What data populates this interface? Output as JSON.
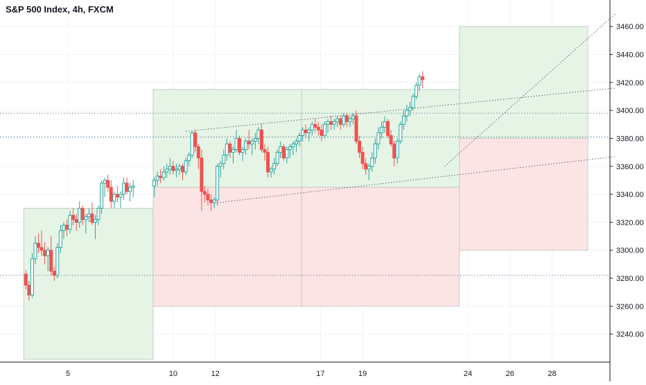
{
  "chart_data": {
    "type": "candlestick",
    "title": "S&P 500 Index, 4h, FXCM",
    "xlabel": "",
    "ylabel": "",
    "ylim": [
      3222,
      3470
    ],
    "y_ticks": [
      "3240.00",
      "3260.00",
      "3280.00",
      "3300.00",
      "3320.00",
      "3340.00",
      "3360.00",
      "3380.00",
      "3400.00",
      "3420.00",
      "3440.00",
      "3460.00"
    ],
    "x_ticks": [
      {
        "label": "5",
        "day": 5
      },
      {
        "label": "10",
        "day": 10
      },
      {
        "label": "12",
        "day": 12
      },
      {
        "label": "17",
        "day": 17
      },
      {
        "label": "19",
        "day": 19
      },
      {
        "label": "24",
        "day": 24
      },
      {
        "label": "26",
        "day": 26
      },
      {
        "label": "28",
        "day": 28
      }
    ],
    "grid": true,
    "colors": {
      "up": "#26a69a",
      "down": "#ef5350",
      "green_zone": "#e6f4e6",
      "red_zone": "#fde4e4",
      "zone_border": "#b9c4b9",
      "guide": "#555555"
    },
    "horizontal_levels": [
      3282,
      3381,
      3398
    ],
    "zones": [
      {
        "color": "green",
        "x1": 2.9,
        "x2": 9.05,
        "y_top": 3330,
        "y_bottom": 3222
      },
      {
        "color": "green",
        "x1": 9.05,
        "x2": 16.1,
        "y_top": 3415,
        "y_bottom": 3345
      },
      {
        "color": "red",
        "x1": 9.05,
        "x2": 16.1,
        "y_top": 3345,
        "y_bottom": 3260
      },
      {
        "color": "green",
        "x1": 16.1,
        "x2": 23.6,
        "y_top": 3415,
        "y_bottom": 3345
      },
      {
        "color": "red",
        "x1": 16.1,
        "x2": 23.6,
        "y_top": 3345,
        "y_bottom": 3260
      },
      {
        "color": "green",
        "x1": 23.6,
        "x2": 29.7,
        "y_top": 3460,
        "y_bottom": 3380
      },
      {
        "color": "red",
        "x1": 23.6,
        "x2": 29.7,
        "y_top": 3380,
        "y_bottom": 3300
      }
    ],
    "trendlines": [
      {
        "x1": 10.6,
        "y1": 3385,
        "x2": 31.0,
        "y2": 3416
      },
      {
        "x1": 12.1,
        "y1": 3334,
        "x2": 31.0,
        "y2": 3367
      },
      {
        "x1": 22.9,
        "y1": 3360,
        "x2": 31.0,
        "y2": 3469
      }
    ],
    "candles": [
      [
        3.0,
        3283,
        3286,
        3272,
        3275
      ],
      [
        3.15,
        3275,
        3278,
        3264,
        3268
      ],
      [
        3.3,
        3268,
        3298,
        3266,
        3294
      ],
      [
        3.45,
        3294,
        3310,
        3290,
        3305
      ],
      [
        3.6,
        3305,
        3312,
        3298,
        3302
      ],
      [
        3.75,
        3302,
        3314,
        3296,
        3300
      ],
      [
        3.9,
        3300,
        3306,
        3290,
        3296
      ],
      [
        4.05,
        3296,
        3302,
        3285,
        3300
      ],
      [
        4.2,
        3300,
        3310,
        3282,
        3285
      ],
      [
        4.35,
        3285,
        3288,
        3278,
        3282
      ],
      [
        4.5,
        3282,
        3305,
        3280,
        3302
      ],
      [
        4.65,
        3302,
        3318,
        3298,
        3314
      ],
      [
        4.8,
        3314,
        3320,
        3308,
        3318
      ],
      [
        4.95,
        3318,
        3322,
        3310,
        3315
      ],
      [
        5.1,
        3315,
        3328,
        3312,
        3325
      ],
      [
        5.25,
        3325,
        3330,
        3318,
        3322
      ],
      [
        5.4,
        3322,
        3326,
        3314,
        3320
      ],
      [
        5.55,
        3320,
        3335,
        3316,
        3330
      ],
      [
        5.7,
        3330,
        3332,
        3318,
        3322
      ],
      [
        5.85,
        3322,
        3326,
        3312,
        3324
      ],
      [
        6.0,
        3324,
        3330,
        3320,
        3326
      ],
      [
        6.15,
        3326,
        3334,
        3318,
        3320
      ],
      [
        6.3,
        3320,
        3325,
        3308,
        3322
      ],
      [
        6.45,
        3322,
        3332,
        3318,
        3330
      ],
      [
        6.6,
        3330,
        3350,
        3326,
        3348
      ],
      [
        6.75,
        3348,
        3352,
        3338,
        3350
      ],
      [
        6.9,
        3350,
        3354,
        3342,
        3345
      ],
      [
        7.05,
        3345,
        3350,
        3330,
        3335
      ],
      [
        7.2,
        3335,
        3342,
        3330,
        3340
      ],
      [
        7.35,
        3340,
        3346,
        3334,
        3338
      ],
      [
        7.5,
        3338,
        3342,
        3330,
        3340
      ],
      [
        7.65,
        3340,
        3352,
        3336,
        3348
      ],
      [
        7.8,
        3348,
        3352,
        3340,
        3342
      ],
      [
        7.95,
        3342,
        3348,
        3335,
        3345
      ],
      [
        8.1,
        3345,
        3350,
        3338,
        3346
      ],
      [
        9.1,
        3346,
        3352,
        3338,
        3350
      ],
      [
        9.25,
        3350,
        3356,
        3346,
        3353
      ],
      [
        9.4,
        3353,
        3358,
        3348,
        3352
      ],
      [
        9.55,
        3352,
        3360,
        3350,
        3356
      ],
      [
        9.7,
        3356,
        3362,
        3352,
        3358
      ],
      [
        9.85,
        3358,
        3366,
        3354,
        3360
      ],
      [
        10.0,
        3360,
        3364,
        3354,
        3357
      ],
      [
        10.15,
        3357,
        3362,
        3352,
        3358
      ],
      [
        10.3,
        3358,
        3362,
        3354,
        3360
      ],
      [
        10.45,
        3360,
        3362,
        3350,
        3356
      ],
      [
        10.6,
        3356,
        3366,
        3354,
        3364
      ],
      [
        10.75,
        3364,
        3370,
        3360,
        3368
      ],
      [
        10.9,
        3368,
        3385,
        3366,
        3384
      ],
      [
        11.05,
        3384,
        3386,
        3370,
        3374
      ],
      [
        11.2,
        3374,
        3376,
        3358,
        3366
      ],
      [
        11.35,
        3366,
        3372,
        3328,
        3342
      ],
      [
        11.5,
        3342,
        3346,
        3334,
        3340
      ],
      [
        11.65,
        3340,
        3344,
        3332,
        3336
      ],
      [
        11.8,
        3336,
        3340,
        3328,
        3334
      ],
      [
        11.95,
        3334,
        3338,
        3330,
        3336
      ],
      [
        12.1,
        3336,
        3362,
        3332,
        3360
      ],
      [
        12.25,
        3360,
        3364,
        3352,
        3362
      ],
      [
        12.4,
        3362,
        3372,
        3358,
        3368
      ],
      [
        12.55,
        3368,
        3380,
        3364,
        3376
      ],
      [
        12.7,
        3376,
        3378,
        3366,
        3370
      ],
      [
        12.85,
        3370,
        3374,
        3362,
        3372
      ],
      [
        13.0,
        3372,
        3386,
        3370,
        3380
      ],
      [
        13.15,
        3380,
        3382,
        3368,
        3370
      ],
      [
        13.3,
        3370,
        3374,
        3364,
        3372
      ],
      [
        13.45,
        3372,
        3380,
        3368,
        3378
      ],
      [
        13.6,
        3378,
        3386,
        3372,
        3376
      ],
      [
        13.75,
        3376,
        3380,
        3368,
        3378
      ],
      [
        13.9,
        3378,
        3384,
        3372,
        3380
      ],
      [
        14.05,
        3380,
        3388,
        3376,
        3386
      ],
      [
        14.2,
        3386,
        3390,
        3370,
        3372
      ],
      [
        14.35,
        3372,
        3376,
        3364,
        3370
      ],
      [
        14.5,
        3370,
        3374,
        3352,
        3356
      ],
      [
        14.65,
        3356,
        3360,
        3352,
        3358
      ],
      [
        14.8,
        3358,
        3366,
        3354,
        3362
      ],
      [
        14.95,
        3362,
        3372,
        3360,
        3370
      ],
      [
        15.1,
        3370,
        3378,
        3366,
        3374
      ],
      [
        15.25,
        3374,
        3376,
        3364,
        3366
      ],
      [
        15.4,
        3366,
        3374,
        3362,
        3372
      ],
      [
        15.55,
        3372,
        3376,
        3366,
        3374
      ],
      [
        15.7,
        3374,
        3378,
        3368,
        3376
      ],
      [
        15.85,
        3376,
        3380,
        3370,
        3378
      ],
      [
        16.0,
        3378,
        3384,
        3374,
        3382
      ],
      [
        16.15,
        3382,
        3388,
        3378,
        3386
      ],
      [
        16.3,
        3386,
        3390,
        3380,
        3384
      ],
      [
        16.45,
        3384,
        3388,
        3378,
        3386
      ],
      [
        16.6,
        3386,
        3392,
        3382,
        3390
      ],
      [
        16.75,
        3390,
        3394,
        3384,
        3388
      ],
      [
        16.9,
        3388,
        3392,
        3382,
        3386
      ],
      [
        17.05,
        3386,
        3390,
        3378,
        3382
      ],
      [
        17.2,
        3382,
        3392,
        3380,
        3390
      ],
      [
        17.35,
        3390,
        3394,
        3384,
        3392
      ],
      [
        17.5,
        3392,
        3396,
        3386,
        3390
      ],
      [
        17.65,
        3390,
        3394,
        3386,
        3392
      ],
      [
        17.8,
        3392,
        3396,
        3388,
        3394
      ],
      [
        17.95,
        3394,
        3396,
        3386,
        3390
      ],
      [
        18.1,
        3390,
        3398,
        3388,
        3396
      ],
      [
        18.25,
        3396,
        3398,
        3388,
        3392
      ],
      [
        18.4,
        3392,
        3396,
        3388,
        3394
      ],
      [
        18.55,
        3394,
        3398,
        3390,
        3396
      ],
      [
        18.7,
        3396,
        3400,
        3376,
        3378
      ],
      [
        18.85,
        3378,
        3382,
        3366,
        3370
      ],
      [
        19.0,
        3370,
        3374,
        3358,
        3362
      ],
      [
        19.15,
        3362,
        3366,
        3354,
        3358
      ],
      [
        19.3,
        3358,
        3362,
        3350,
        3360
      ],
      [
        19.45,
        3360,
        3370,
        3356,
        3366
      ],
      [
        19.6,
        3366,
        3380,
        3362,
        3376
      ],
      [
        19.75,
        3376,
        3388,
        3372,
        3384
      ],
      [
        19.9,
        3384,
        3392,
        3380,
        3388
      ],
      [
        20.05,
        3388,
        3396,
        3384,
        3392
      ],
      [
        20.2,
        3392,
        3394,
        3380,
        3382
      ],
      [
        20.35,
        3382,
        3386,
        3374,
        3376
      ],
      [
        20.5,
        3376,
        3378,
        3360,
        3366
      ],
      [
        20.65,
        3366,
        3380,
        3362,
        3378
      ],
      [
        20.8,
        3378,
        3392,
        3376,
        3390
      ],
      [
        20.95,
        3390,
        3400,
        3386,
        3396
      ],
      [
        21.1,
        3396,
        3404,
        3392,
        3400
      ],
      [
        21.25,
        3400,
        3406,
        3396,
        3402
      ],
      [
        21.4,
        3402,
        3412,
        3400,
        3410
      ],
      [
        21.55,
        3410,
        3420,
        3408,
        3418
      ],
      [
        21.7,
        3418,
        3426,
        3414,
        3424
      ],
      [
        21.85,
        3424,
        3428,
        3416,
        3422
      ]
    ]
  }
}
